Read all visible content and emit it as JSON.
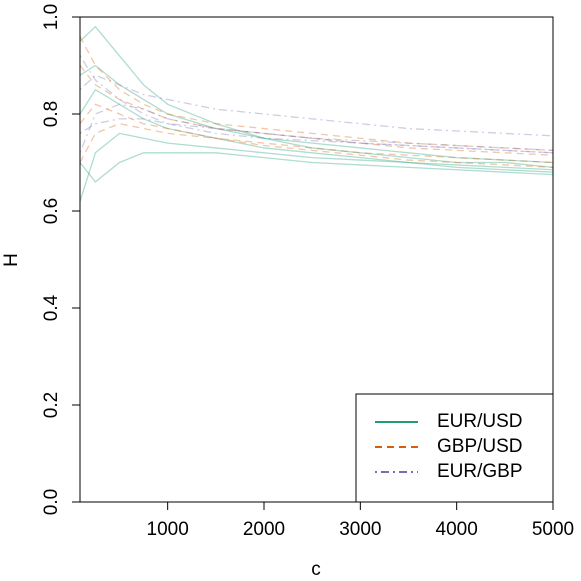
{
  "chart_data": {
    "type": "line",
    "x_label": "c",
    "y_label": "H",
    "x": [
      90,
      250,
      500,
      750,
      1000,
      1500,
      2000,
      2500,
      3000,
      3500,
      4000,
      4500,
      5000
    ],
    "xlim": [
      90,
      5000
    ],
    "xticks": [
      1000,
      2000,
      3000,
      4000,
      5000
    ],
    "ylim": [
      0,
      1
    ],
    "yticks": [
      {
        "value": 0,
        "label": "0.0"
      },
      0.2,
      0.4,
      0.6,
      0.8,
      {
        "value": 1,
        "label": "1.0"
      }
    ],
    "legend": "bottom right",
    "alpha": 0.35,
    "series": [
      {
        "name": "EUR/USD",
        "color": "#1b9e77",
        "linestyle": "solid",
        "lines": [
          [
            0.62,
            0.72,
            0.76,
            0.75,
            0.74,
            0.73,
            0.72,
            0.71,
            0.705,
            0.7,
            0.695,
            0.69,
            0.685
          ],
          [
            0.95,
            0.98,
            0.92,
            0.86,
            0.82,
            0.78,
            0.75,
            0.73,
            0.72,
            0.71,
            0.7,
            0.7,
            0.69
          ],
          [
            0.8,
            0.85,
            0.82,
            0.79,
            0.77,
            0.75,
            0.73,
            0.72,
            0.71,
            0.7,
            0.69,
            0.685,
            0.68
          ],
          [
            0.7,
            0.66,
            0.7,
            0.72,
            0.72,
            0.72,
            0.71,
            0.7,
            0.695,
            0.69,
            0.685,
            0.68,
            0.675
          ],
          [
            0.88,
            0.9,
            0.86,
            0.83,
            0.8,
            0.77,
            0.75,
            0.74,
            0.73,
            0.72,
            0.71,
            0.705,
            0.7
          ]
        ]
      },
      {
        "name": "GBP/USD",
        "color": "#d95f02",
        "linestyle": "dashed",
        "lines": [
          [
            0.96,
            0.9,
            0.85,
            0.82,
            0.8,
            0.78,
            0.77,
            0.76,
            0.75,
            0.74,
            0.735,
            0.73,
            0.725
          ],
          [
            0.78,
            0.82,
            0.8,
            0.78,
            0.77,
            0.75,
            0.74,
            0.73,
            0.72,
            0.715,
            0.71,
            0.705,
            0.7
          ],
          [
            0.7,
            0.76,
            0.78,
            0.77,
            0.76,
            0.75,
            0.735,
            0.725,
            0.715,
            0.705,
            0.7,
            0.695,
            0.69
          ],
          [
            0.9,
            0.86,
            0.83,
            0.81,
            0.79,
            0.77,
            0.76,
            0.75,
            0.74,
            0.73,
            0.725,
            0.72,
            0.715
          ]
        ]
      },
      {
        "name": "EUR/GBP",
        "color": "#7570b3",
        "linestyle": "dotdash",
        "lines": [
          [
            0.85,
            0.88,
            0.86,
            0.84,
            0.83,
            0.81,
            0.8,
            0.79,
            0.78,
            0.77,
            0.765,
            0.76,
            0.755
          ],
          [
            0.72,
            0.8,
            0.82,
            0.81,
            0.79,
            0.77,
            0.76,
            0.75,
            0.74,
            0.735,
            0.73,
            0.725,
            0.72
          ],
          [
            0.92,
            0.87,
            0.83,
            0.8,
            0.78,
            0.76,
            0.75,
            0.745,
            0.74,
            0.735,
            0.73,
            0.725,
            0.72
          ],
          [
            0.76,
            0.78,
            0.79,
            0.79,
            0.78,
            0.77,
            0.76,
            0.75,
            0.745,
            0.74,
            0.735,
            0.73,
            0.725
          ]
        ]
      }
    ]
  }
}
